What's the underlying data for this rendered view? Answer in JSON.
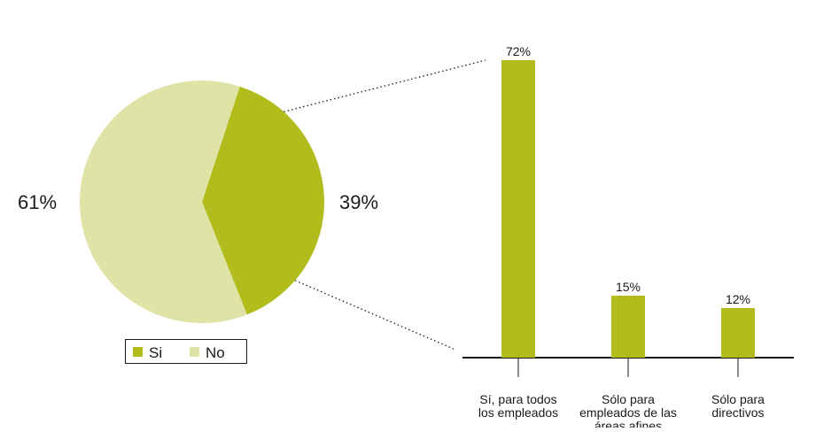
{
  "colors": {
    "si": "#b2bd1d",
    "no": "#dfe3a6",
    "axis": "#1a1a1a",
    "connector": "#1a1a1a"
  },
  "chart_data": [
    {
      "type": "pie",
      "slices": [
        {
          "label": "Si",
          "value": 39,
          "value_label": "39%"
        },
        {
          "label": "No",
          "value": 61,
          "value_label": "61%"
        }
      ],
      "legend": {
        "placement": "bottom",
        "items": [
          "Si",
          "No"
        ]
      }
    },
    {
      "type": "bar",
      "categories": [
        "Sí, para todos los empleados",
        "Sólo para empleados de las áreas afines",
        "Sólo para directivos"
      ],
      "category_lines": [
        [
          "Sí, para todos",
          "los empleados"
        ],
        [
          "Sólo para",
          "empleados de las",
          "áreas afines"
        ],
        [
          "Sólo para",
          "directivos"
        ]
      ],
      "values": [
        72,
        15,
        12
      ],
      "value_labels": [
        "72%",
        "15%",
        "12%"
      ],
      "ylim": [
        0,
        80
      ],
      "grid": false
    }
  ]
}
